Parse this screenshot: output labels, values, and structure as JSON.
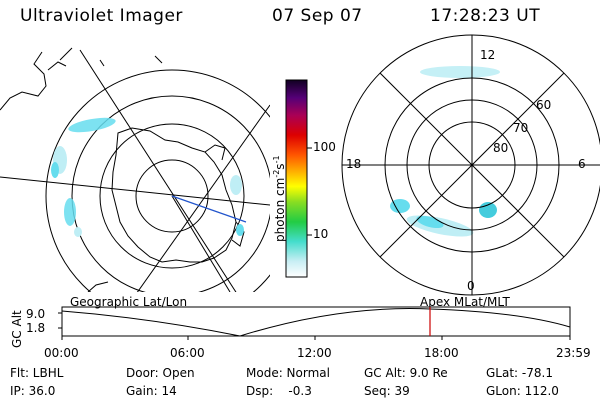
{
  "header": {
    "instrument": "Ultraviolet Imager",
    "date": "07 Sep 07",
    "time": "17:28:23 UT"
  },
  "colorbar": {
    "unit_label": "photon cm",
    "unit_sup1": "-2",
    "unit_s": "s",
    "unit_sup2": "-1",
    "ticks": [
      "100",
      "10"
    ]
  },
  "mlt_plot": {
    "hour_labels": {
      "top": "12",
      "left": "18",
      "right": "6",
      "bottom": "0"
    },
    "lat_labels": [
      "60",
      "70",
      "80"
    ]
  },
  "orbit_plot": {
    "left_title": "Geographic Lat/Lon",
    "right_title": "Apex MLat/MLT",
    "ylabel": "GC Alt",
    "yticks": [
      "9.0",
      "1.8"
    ],
    "xticks": [
      "00:00",
      "06:00",
      "12:00",
      "18:00",
      "23:59"
    ]
  },
  "info": {
    "r1": {
      "flt": "Flt: LBHL",
      "door": "Door: Open",
      "mode": "Mode: Normal",
      "gcalt": "GC Alt: 9.0 Re",
      "glat": "GLat: -78.1"
    },
    "r2": {
      "ip": "IP: 36.0",
      "gain": "Gain: 14",
      "dsp": "Dsp:    -0.3",
      "seq": "Seq: 39",
      "glon": "GLon: 112.0"
    }
  },
  "colors": {
    "auroral_cyan": "#66ddee",
    "auroral_pale": "#bfeef5",
    "marker": "#cc0000",
    "subsolar_line": "#2255cc"
  }
}
